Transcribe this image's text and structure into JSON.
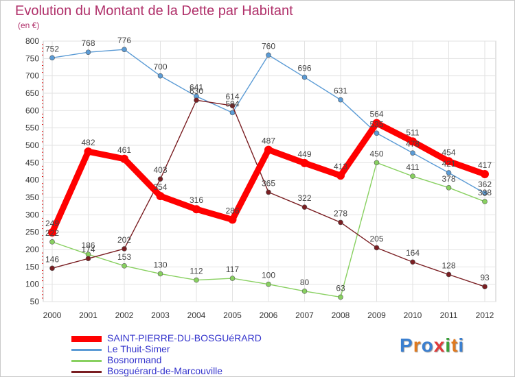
{
  "header": {
    "title": "Evolution du Montant de la Dette par Habitant",
    "subtitle": "(en €)"
  },
  "logo": {
    "text": "Proxiti",
    "colors": [
      "#3a7fd0",
      "#e07a1f",
      "#3a7fd0",
      "#e03a3a",
      "#3aa03a",
      "#e07a1f",
      "#3a7fd0"
    ]
  },
  "chart_data": {
    "type": "line",
    "title": "Evolution du Montant de la Dette par Habitant",
    "subtitle": "(en €)",
    "xlabel": "",
    "ylabel": "",
    "x": [
      "2000",
      "2001",
      "2002",
      "2003",
      "2004",
      "2005",
      "2006",
      "2007",
      "2008",
      "2009",
      "2010",
      "2011",
      "2012"
    ],
    "yticks": [
      50,
      100,
      150,
      200,
      250,
      300,
      350,
      400,
      450,
      500,
      550,
      600,
      650,
      700,
      750,
      800
    ],
    "ylim": [
      50,
      800
    ],
    "grid": true,
    "legend_position": "bottom-left",
    "series": [
      {
        "name": "SAINT-PIERRE-DU-BOSGUéRARD",
        "color": "#ff0000",
        "emphasis": true,
        "values": [
          249,
          482,
          461,
          354,
          316,
          286,
          487,
          449,
          413,
          564,
          511,
          454,
          417
        ],
        "labels": [
          "249",
          "482",
          "461",
          "354",
          "316",
          "286",
          "487",
          "449",
          "413",
          "564",
          "511",
          "454",
          "417"
        ]
      },
      {
        "name": "Le Thuit-Simer",
        "color": "#5b9bd5",
        "emphasis": false,
        "values": [
          752,
          768,
          776,
          700,
          641,
          594,
          760,
          696,
          631,
          535,
          478,
          421,
          362
        ],
        "labels": [
          "752",
          "768",
          "776",
          "700",
          "641",
          "594",
          "760",
          "696",
          "631",
          "535",
          "478",
          "421",
          "362"
        ]
      },
      {
        "name": "Bosnormand",
        "color": "#88d060",
        "emphasis": false,
        "values": [
          222,
          186,
          153,
          130,
          112,
          117,
          100,
          80,
          63,
          450,
          411,
          378,
          338
        ],
        "labels": [
          "222",
          "186",
          "153",
          "130",
          "112",
          "117",
          "100",
          "80",
          "63",
          "450",
          "411",
          "378",
          "338"
        ]
      },
      {
        "name": "Bosguérard-de-Marcouville",
        "color": "#7a1e22",
        "emphasis": false,
        "values": [
          146,
          174,
          202,
          403,
          630,
          614,
          365,
          322,
          278,
          205,
          164,
          128,
          93
        ],
        "labels": [
          "146",
          "174",
          "202",
          "403",
          "630",
          "614",
          "365",
          "322",
          "278",
          "205",
          "164",
          "128",
          "93"
        ]
      }
    ]
  }
}
